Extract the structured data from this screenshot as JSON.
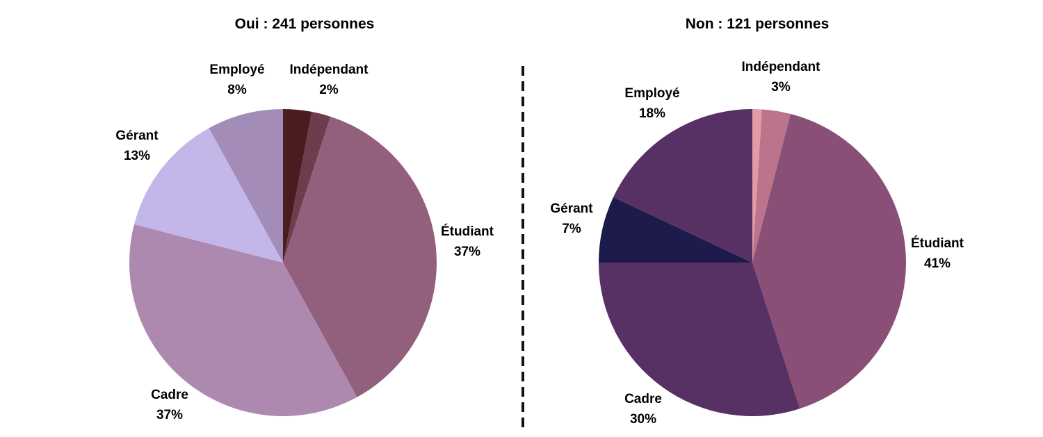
{
  "chart_data": [
    {
      "type": "pie",
      "title": "Oui : 241 personnes",
      "slices": [
        {
          "label": "",
          "value": 3,
          "value_label": "",
          "color": "#4a1c1f"
        },
        {
          "label": "Indépendant",
          "value": 2,
          "value_label": "2%",
          "color": "#6e3d4b"
        },
        {
          "label": "Étudiant",
          "value": 37,
          "value_label": "37%",
          "color": "#92607c"
        },
        {
          "label": "Cadre",
          "value": 37,
          "value_label": "37%",
          "color": "#ad89b0"
        },
        {
          "label": "Gérant",
          "value": 13,
          "value_label": "13%",
          "color": "#c3b6e8"
        },
        {
          "label": "Employé",
          "value": 8,
          "value_label": "8%",
          "color": "#a38db8"
        }
      ]
    },
    {
      "type": "pie",
      "title": "Non : 121 personnes",
      "slices": [
        {
          "label": "",
          "value": 1,
          "value_label": "",
          "color": "#e49aa4"
        },
        {
          "label": "Indépendant",
          "value": 3,
          "value_label": "3%",
          "color": "#bc738c"
        },
        {
          "label": "Étudiant",
          "value": 41,
          "value_label": "41%",
          "color": "#8a4f76"
        },
        {
          "label": "Cadre",
          "value": 30,
          "value_label": "30%",
          "color": "#573064"
        },
        {
          "label": "Gérant",
          "value": 7,
          "value_label": "7%",
          "color": "#1d1b4b"
        },
        {
          "label": "Employé",
          "value": 18,
          "value_label": "18%",
          "color": "#573064"
        }
      ]
    }
  ],
  "divider_color": "#111111"
}
